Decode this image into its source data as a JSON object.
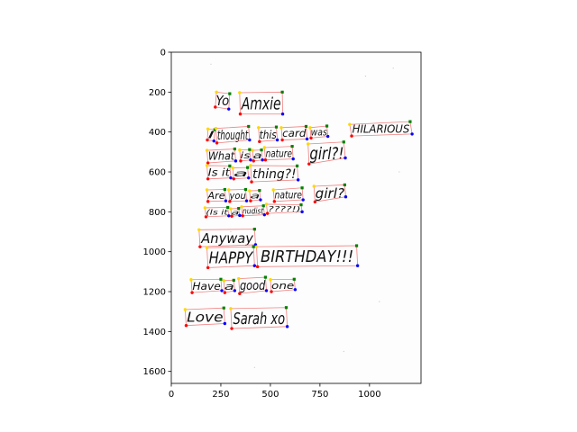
{
  "chart_data": {
    "type": "image-annotation",
    "title": "",
    "xlabel": "",
    "ylabel": "",
    "xlim": [
      0,
      1260
    ],
    "ylim": [
      1660,
      0
    ],
    "y_inverted": true,
    "x_ticks": [
      0,
      250,
      500,
      750,
      1000
    ],
    "y_ticks": [
      0,
      200,
      400,
      600,
      800,
      1000,
      1200,
      1400,
      1600
    ],
    "image_extent": {
      "x": [
        0,
        1260
      ],
      "y": [
        0,
        1660
      ]
    },
    "colors": {
      "box_edge": "#f08080",
      "corner_top_left": "#ffd700",
      "corner_top_right": "#008000",
      "corner_bottom_left": "#ff0000",
      "corner_bottom_right": "#0000ff"
    },
    "word_boxes": [
      {
        "text": "Yo",
        "corners": [
          [
            228,
            200
          ],
          [
            295,
            208
          ],
          [
            290,
            285
          ],
          [
            222,
            275
          ]
        ]
      },
      {
        "text": "Amxie",
        "corners": [
          [
            345,
            203
          ],
          [
            560,
            200
          ],
          [
            562,
            310
          ],
          [
            348,
            310
          ]
        ]
      },
      {
        "text": "I",
        "corners": [
          [
            185,
            385
          ],
          [
            220,
            388
          ],
          [
            215,
            445
          ],
          [
            182,
            440
          ]
        ]
      },
      {
        "text": "thought",
        "corners": [
          [
            225,
            382
          ],
          [
            390,
            372
          ],
          [
            395,
            440
          ],
          [
            230,
            455
          ]
        ]
      },
      {
        "text": "this",
        "corners": [
          [
            440,
            378
          ],
          [
            530,
            375
          ],
          [
            535,
            440
          ],
          [
            445,
            448
          ]
        ]
      },
      {
        "text": "card",
        "corners": [
          [
            555,
            378
          ],
          [
            680,
            372
          ],
          [
            685,
            435
          ],
          [
            560,
            440
          ]
        ]
      },
      {
        "text": "was",
        "corners": [
          [
            700,
            378
          ],
          [
            785,
            370
          ],
          [
            790,
            422
          ],
          [
            705,
            430
          ]
        ]
      },
      {
        "text": "HILARIOUS",
        "corners": [
          [
            900,
            362
          ],
          [
            1205,
            348
          ],
          [
            1215,
            410
          ],
          [
            910,
            420
          ]
        ]
      },
      {
        "text": "What",
        "corners": [
          [
            180,
            492
          ],
          [
            320,
            485
          ],
          [
            325,
            545
          ],
          [
            185,
            555
          ]
        ]
      },
      {
        "text": "is",
        "corners": [
          [
            345,
            490
          ],
          [
            395,
            488
          ],
          [
            400,
            540
          ],
          [
            350,
            545
          ]
        ]
      },
      {
        "text": "a",
        "corners": [
          [
            410,
            492
          ],
          [
            455,
            490
          ],
          [
            460,
            540
          ],
          [
            415,
            545
          ]
        ]
      },
      {
        "text": "nature",
        "corners": [
          [
            470,
            478
          ],
          [
            610,
            472
          ],
          [
            615,
            535
          ],
          [
            475,
            540
          ]
        ]
      },
      {
        "text": "girl?!",
        "corners": [
          [
            690,
            460
          ],
          [
            870,
            450
          ],
          [
            878,
            530
          ],
          [
            695,
            560
          ]
        ]
      },
      {
        "text": "Is it",
        "corners": [
          [
            180,
            568
          ],
          [
            295,
            570
          ],
          [
            300,
            630
          ],
          [
            185,
            635
          ]
        ]
      },
      {
        "text": "a",
        "corners": [
          [
            310,
            580
          ],
          [
            385,
            578
          ],
          [
            390,
            630
          ],
          [
            315,
            635
          ]
        ]
      },
      {
        "text": "thing?!",
        "corners": [
          [
            400,
            568
          ],
          [
            635,
            570
          ],
          [
            640,
            640
          ],
          [
            405,
            650
          ]
        ]
      },
      {
        "text": "Are",
        "corners": [
          [
            180,
            690
          ],
          [
            270,
            688
          ],
          [
            275,
            745
          ],
          [
            185,
            748
          ]
        ]
      },
      {
        "text": "you",
        "corners": [
          [
            290,
            690
          ],
          [
            375,
            688
          ],
          [
            380,
            745
          ],
          [
            295,
            748
          ]
        ]
      },
      {
        "text": "a",
        "corners": [
          [
            395,
            695
          ],
          [
            445,
            693
          ],
          [
            450,
            740
          ],
          [
            400,
            745
          ]
        ]
      },
      {
        "text": "nature",
        "corners": [
          [
            515,
            690
          ],
          [
            660,
            680
          ],
          [
            665,
            740
          ],
          [
            520,
            748
          ]
        ]
      },
      {
        "text": "girl?",
        "corners": [
          [
            720,
            672
          ],
          [
            875,
            665
          ],
          [
            880,
            725
          ],
          [
            725,
            750
          ]
        ]
      },
      {
        "text": "(Is it",
        "corners": [
          [
            170,
            780
          ],
          [
            285,
            778
          ],
          [
            290,
            820
          ],
          [
            175,
            825
          ]
        ]
      },
      {
        "text": "a",
        "corners": [
          [
            300,
            785
          ],
          [
            340,
            783
          ],
          [
            345,
            818
          ],
          [
            305,
            822
          ]
        ]
      },
      {
        "text": "nudist",
        "corners": [
          [
            355,
            775
          ],
          [
            465,
            770
          ],
          [
            470,
            815
          ],
          [
            360,
            820
          ]
        ]
      },
      {
        "text": "????!)",
        "corners": [
          [
            480,
            762
          ],
          [
            655,
            765
          ],
          [
            660,
            800
          ],
          [
            485,
            808
          ]
        ]
      },
      {
        "text": "Anyway",
        "corners": [
          [
            140,
            890
          ],
          [
            420,
            887
          ],
          [
            425,
            965
          ],
          [
            145,
            975
          ]
        ]
      },
      {
        "text": "HAPPY",
        "corners": [
          [
            180,
            980
          ],
          [
            415,
            975
          ],
          [
            420,
            1070
          ],
          [
            185,
            1080
          ]
        ]
      },
      {
        "text": "BIRTHDAY!!!",
        "corners": [
          [
            430,
            975
          ],
          [
            935,
            970
          ],
          [
            940,
            1070
          ],
          [
            435,
            1075
          ]
        ]
      },
      {
        "text": "Have",
        "corners": [
          [
            100,
            1140
          ],
          [
            250,
            1138
          ],
          [
            255,
            1195
          ],
          [
            105,
            1205
          ]
        ]
      },
      {
        "text": "a",
        "corners": [
          [
            265,
            1145
          ],
          [
            315,
            1143
          ],
          [
            320,
            1195
          ],
          [
            270,
            1205
          ]
        ]
      },
      {
        "text": "good",
        "corners": [
          [
            340,
            1135
          ],
          [
            475,
            1128
          ],
          [
            480,
            1195
          ],
          [
            345,
            1210
          ]
        ]
      },
      {
        "text": "one",
        "corners": [
          [
            500,
            1140
          ],
          [
            620,
            1138
          ],
          [
            625,
            1190
          ],
          [
            505,
            1200
          ]
        ]
      },
      {
        "text": "Love",
        "corners": [
          [
            70,
            1290
          ],
          [
            265,
            1282
          ],
          [
            270,
            1360
          ],
          [
            75,
            1370
          ]
        ]
      },
      {
        "text": "Sarah xo",
        "corners": [
          [
            300,
            1285
          ],
          [
            580,
            1280
          ],
          [
            585,
            1375
          ],
          [
            305,
            1385
          ]
        ]
      }
    ]
  }
}
